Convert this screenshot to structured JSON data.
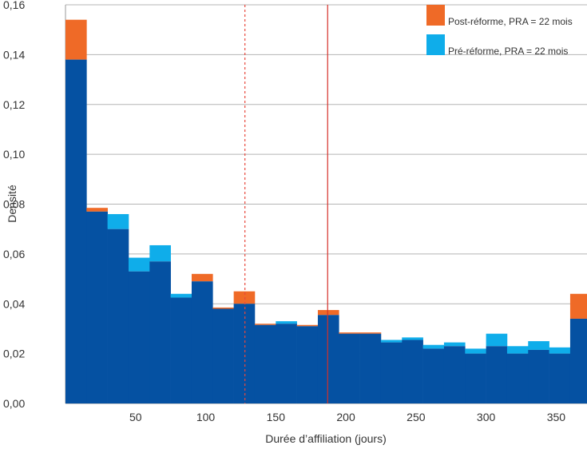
{
  "chart_data": {
    "type": "bar",
    "title": "",
    "xlabel": "Durée d’affiliation (jours)",
    "ylabel": "Densité",
    "xlim": [
      0,
      372
    ],
    "ylim": [
      0,
      0.16
    ],
    "x_ticks": [
      {
        "value": 50,
        "label": "50"
      },
      {
        "value": 100,
        "label": "100"
      },
      {
        "value": 150,
        "label": "150"
      },
      {
        "value": 200,
        "label": "200"
      },
      {
        "value": 250,
        "label": "250"
      },
      {
        "value": 300,
        "label": "300"
      },
      {
        "value": 350,
        "label": "350"
      }
    ],
    "y_ticks": [
      {
        "value": 0.0,
        "label": "0,00"
      },
      {
        "value": 0.02,
        "label": "0,02"
      },
      {
        "value": 0.04,
        "label": "0,04"
      },
      {
        "value": 0.06,
        "label": "0,06"
      },
      {
        "value": 0.08,
        "label": "0,08"
      },
      {
        "value": 0.1,
        "label": "0,10"
      },
      {
        "value": 0.12,
        "label": "0,12"
      },
      {
        "value": 0.14,
        "label": "0,14"
      },
      {
        "value": 0.16,
        "label": "0,16"
      }
    ],
    "grid": "horizontal",
    "legend_position": "top-right",
    "bin_edges": [
      0,
      15,
      30,
      45,
      60,
      75,
      90,
      105,
      120,
      135,
      150,
      165,
      180,
      195,
      210,
      225,
      240,
      255,
      270,
      285,
      300,
      315,
      330,
      345,
      360,
      372
    ],
    "series": [
      {
        "name": "Post-réforme, PRA = 22 mois",
        "color": "#ef6a27",
        "values": [
          0.154,
          0.0785,
          0.07,
          0.053,
          0.057,
          0.0425,
          0.052,
          0.0385,
          0.045,
          0.032,
          0.032,
          0.0315,
          0.0375,
          0.0285,
          0.0285,
          0.0245,
          0.0255,
          0.022,
          0.023,
          0.02,
          0.023,
          0.02,
          0.0215,
          0.02,
          0.044
        ]
      },
      {
        "name": "Pré-réforme, PRA = 22 mois",
        "color": "#0fadea",
        "values": [
          0.138,
          0.077,
          0.076,
          0.0585,
          0.0635,
          0.044,
          0.049,
          0.038,
          0.04,
          0.0315,
          0.033,
          0.031,
          0.0355,
          0.028,
          0.028,
          0.0255,
          0.0265,
          0.0235,
          0.0245,
          0.022,
          0.028,
          0.023,
          0.025,
          0.0225,
          0.034
        ]
      }
    ],
    "overlap_color": "#0551a2",
    "vlines": [
      {
        "x": 128,
        "style": "dashed",
        "color": "#e8473c"
      },
      {
        "x": 187,
        "style": "solid",
        "color": "#d62f28"
      }
    ]
  }
}
